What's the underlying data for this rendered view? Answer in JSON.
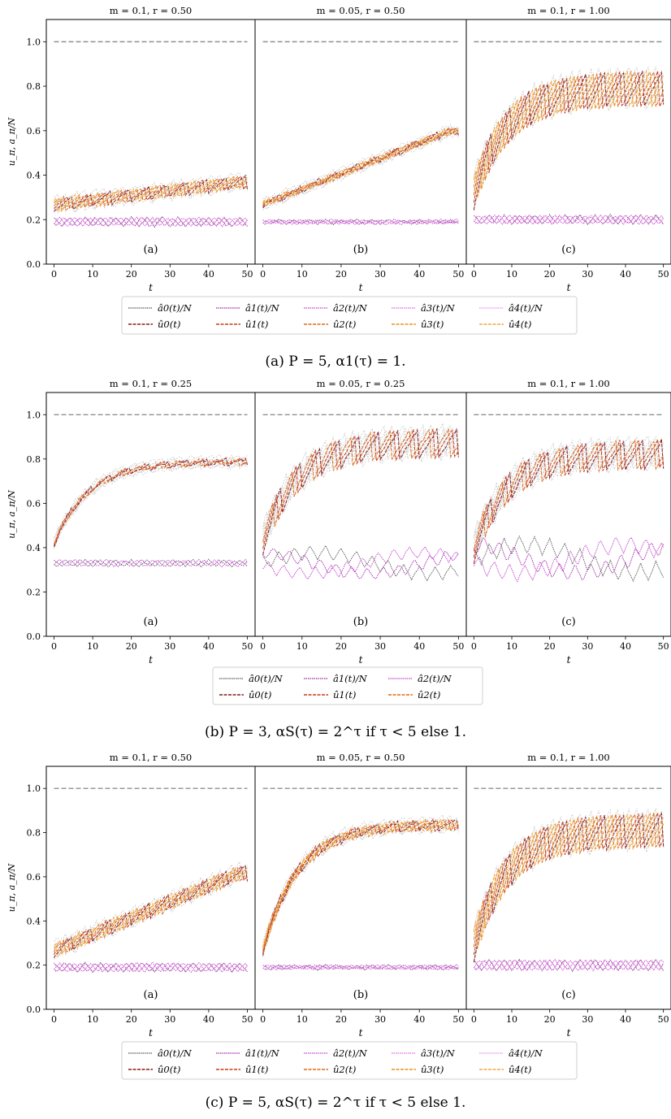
{
  "common": {
    "ylabel": "u_π, a_π/N",
    "xlabel": "t",
    "x_ticks": [
      0,
      10,
      20,
      30,
      40,
      50
    ],
    "y_ticks": [
      "0.0",
      "0.2",
      "0.4",
      "0.6",
      "0.8",
      "1.0"
    ],
    "xlim": [
      -2,
      52
    ],
    "ylim": [
      0.0,
      1.1
    ],
    "reference_line": 1.0
  },
  "chart_data": [
    {
      "type": "line",
      "caption": "(a) P = 5, α1(τ) = 1.",
      "P": 5,
      "legend": {
        "a_labels": [
          "â0(t)/N",
          "â1(t)/N",
          "â2(t)/N",
          "â3(t)/N",
          "â4(t)/N"
        ],
        "u_labels": [
          "û0(t)",
          "û1(t)",
          "û2(t)",
          "û3(t)",
          "û4(t)"
        ]
      },
      "panels": [
        {
          "title": "m = 0.1, r = 0.50",
          "tag": "(a)",
          "u_start": 0.27,
          "u_end": 0.37,
          "u_amp": 0.06,
          "a_mean": 0.19,
          "a_amp": 0.04
        },
        {
          "title": "m = 0.05, r = 0.50",
          "tag": "(b)",
          "u_start": 0.27,
          "u_end": 0.6,
          "u_amp": 0.03,
          "a_mean": 0.19,
          "a_amp": 0.02
        },
        {
          "title": "m = 0.1, r = 1.00",
          "tag": "(c)",
          "u_start": 0.33,
          "u_end": 0.8,
          "u_amp": 0.17,
          "a_mean": 0.2,
          "a_amp": 0.04
        }
      ]
    },
    {
      "type": "line",
      "caption": "(b) P = 3, αS(τ) = 2^τ if τ < 5 else 1.",
      "P": 3,
      "legend": {
        "a_labels": [
          "â0(t)/N",
          "â1(t)/N",
          "â2(t)/N"
        ],
        "u_labels": [
          "û0(t)",
          "û1(t)",
          "û2(t)"
        ]
      },
      "panels": [
        {
          "title": "m = 0.1, r = 0.25",
          "tag": "(a)",
          "u_start": 0.42,
          "u_end": 0.79,
          "u_amp": 0.03,
          "a_mean": 0.33,
          "a_amp": 0.03
        },
        {
          "title": "m = 0.05, r = 0.25",
          "tag": "(b)",
          "u_start": 0.44,
          "u_end": 0.88,
          "u_amp": 0.14,
          "a_mean": 0.33,
          "a_amp": 0.06
        },
        {
          "title": "m = 0.1, r = 1.00",
          "tag": "(c)",
          "u_start": 0.4,
          "u_end": 0.83,
          "u_amp": 0.14,
          "a_mean": 0.35,
          "a_amp": 0.08
        }
      ]
    },
    {
      "type": "line",
      "caption": "(c) P = 5, αS(τ) = 2^τ if τ < 5 else 1.",
      "P": 5,
      "legend": {
        "a_labels": [
          "â0(t)/N",
          "â1(t)/N",
          "â2(t)/N",
          "â3(t)/N",
          "â4(t)/N"
        ],
        "u_labels": [
          "û0(t)",
          "û1(t)",
          "û2(t)",
          "û3(t)",
          "û4(t)"
        ]
      },
      "panels": [
        {
          "title": "m = 0.1, r = 0.50",
          "tag": "(a)",
          "u_start": 0.27,
          "u_end": 0.62,
          "u_amp": 0.07,
          "a_mean": 0.19,
          "a_amp": 0.04
        },
        {
          "title": "m = 0.05, r = 0.50",
          "tag": "(b)",
          "u_start": 0.27,
          "u_end": 0.84,
          "u_amp": 0.05,
          "a_mean": 0.19,
          "a_amp": 0.02
        },
        {
          "title": "m = 0.1, r = 1.00",
          "tag": "(c)",
          "u_start": 0.3,
          "u_end": 0.82,
          "u_amp": 0.17,
          "a_mean": 0.2,
          "a_amp": 0.05
        }
      ]
    }
  ],
  "colors": {
    "u_series": [
      "#8b1a1a",
      "#c93a14",
      "#e2680f",
      "#ee8f1c",
      "#f5a83a"
    ],
    "a_series": [
      "#555555",
      "#a020a8",
      "#c43cd0",
      "#dc63e2",
      "#ee8af0"
    ],
    "ghost": "#c8c8c8",
    "reference": "#909090"
  }
}
